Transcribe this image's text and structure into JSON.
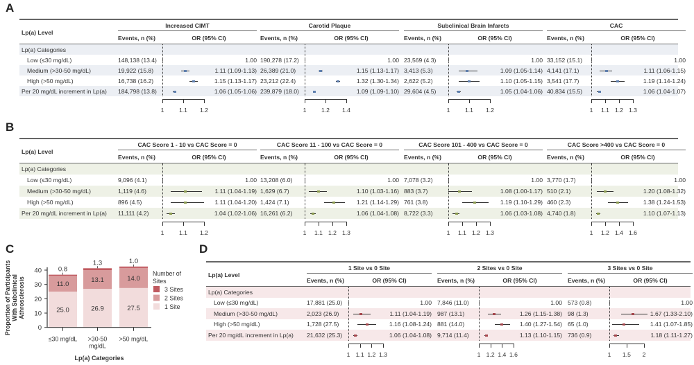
{
  "panels": [
    {
      "letter": "A",
      "row_label_header": "Lp(a) Level",
      "col_events": "Events, n (%)",
      "col_or": "OR (95% CI)",
      "row_labels": [
        "Lp(a) Categories",
        "Low (≤30 mg/dL)",
        "Medium (>30-50 mg/dL)",
        "High (>50 mg/dL)",
        "Per 20 mg/dL increment in Lp(a)"
      ],
      "stripe_color": "#eceff4",
      "marker_color": "#5f7fae",
      "groups": [
        {
          "title": "Increased CIMT",
          "axis": [
            1,
            1.2
          ],
          "ticks": [
            "1",
            "1.1",
            "1.2"
          ],
          "rows": [
            {
              "events": "148,138 (13.4)",
              "or_text": "1.00",
              "or": 1.0,
              "lo": 1.0,
              "hi": 1.0
            },
            {
              "events": "19,922 (15.8)",
              "or_text": "1.11 (1.09-1.13)",
              "or": 1.11,
              "lo": 1.09,
              "hi": 1.13
            },
            {
              "events": "16,738 (16.2)",
              "or_text": "1.15 (1.13-1.17)",
              "or": 1.15,
              "lo": 1.13,
              "hi": 1.17
            },
            {
              "events": "184,798 (13.8)",
              "or_text": "1.06 (1.05-1.06)",
              "or": 1.06,
              "lo": 1.05,
              "hi": 1.06
            }
          ]
        },
        {
          "title": "Carotid Plaque",
          "axis": [
            1,
            1.4
          ],
          "ticks": [
            "1",
            "1.2",
            "1.4"
          ],
          "rows": [
            {
              "events": "190,278 (17.2)",
              "or_text": "1.00",
              "or": 1.0,
              "lo": 1.0,
              "hi": 1.0
            },
            {
              "events": "26,389 (21.0)",
              "or_text": "1.15 (1.13-1.17)",
              "or": 1.15,
              "lo": 1.13,
              "hi": 1.17
            },
            {
              "events": "23,212 (22.4)",
              "or_text": "1.32 (1.30-1.34)",
              "or": 1.32,
              "lo": 1.3,
              "hi": 1.34
            },
            {
              "events": "239,879 (18.0)",
              "or_text": "1.09 (1.09-1.10)",
              "or": 1.09,
              "lo": 1.09,
              "hi": 1.1
            }
          ]
        },
        {
          "title": "Subclinical Brain Infarcts",
          "axis": [
            1,
            1.2
          ],
          "ticks": [
            "1",
            "1.1",
            "1.2"
          ],
          "rows": [
            {
              "events": "23,569 (4.3)",
              "or_text": "1.00",
              "or": 1.0,
              "lo": 1.0,
              "hi": 1.0
            },
            {
              "events": "3,413 (5.3)",
              "or_text": "1.09 (1.05-1.14)",
              "or": 1.09,
              "lo": 1.05,
              "hi": 1.14
            },
            {
              "events": "2,622 (5.2)",
              "or_text": "1.10 (1.05-1.15)",
              "or": 1.1,
              "lo": 1.05,
              "hi": 1.15
            },
            {
              "events": "29,604 (4.5)",
              "or_text": "1.05 (1.04-1.06)",
              "or": 1.05,
              "lo": 1.04,
              "hi": 1.06
            }
          ]
        },
        {
          "title": "CAC",
          "axis": [
            1,
            1.3
          ],
          "ticks": [
            "1",
            "1.1",
            "1.2",
            "1.3"
          ],
          "rows": [
            {
              "events": "33,152 (15.1)",
              "or_text": "1.00",
              "or": 1.0,
              "lo": 1.0,
              "hi": 1.0
            },
            {
              "events": "4,141 (17.1)",
              "or_text": "1.11 (1.06-1.15)",
              "or": 1.11,
              "lo": 1.06,
              "hi": 1.15
            },
            {
              "events": "3,541 (17.7)",
              "or_text": "1.19 (1.14-1.24)",
              "or": 1.19,
              "lo": 1.14,
              "hi": 1.24
            },
            {
              "events": "40,834 (15.5)",
              "or_text": "1.06 (1.04-1.07)",
              "or": 1.06,
              "lo": 1.04,
              "hi": 1.07
            }
          ]
        }
      ]
    },
    {
      "letter": "B",
      "row_label_header": "Lp(a) Level",
      "col_events": "Events, n (%)",
      "col_or": "OR (95% CI)",
      "row_labels": [
        "Lp(a) Categories",
        "Low (≤30 mg/dL)",
        "Medium (>30-50 mg/dL)",
        "High (>50 mg/dL)",
        "Per 20 mg/dL increment in Lp(a)"
      ],
      "stripe_color": "#eef1e6",
      "marker_color": "#8a9a4e",
      "groups": [
        {
          "title": "CAC Score 1 - 10 vs CAC Score = 0",
          "axis": [
            1,
            1.2
          ],
          "ticks": [
            "1",
            "1.1",
            "1.2"
          ],
          "rows": [
            {
              "events": "9,096 (4.1)",
              "or_text": "1.00",
              "or": 1.0,
              "lo": 1.0,
              "hi": 1.0
            },
            {
              "events": "1,119 (4.6)",
              "or_text": "1.11 (1.04-1.19)",
              "or": 1.11,
              "lo": 1.04,
              "hi": 1.19
            },
            {
              "events": "896 (4.5)",
              "or_text": "1.11 (1.04-1.20)",
              "or": 1.11,
              "lo": 1.04,
              "hi": 1.2
            },
            {
              "events": "11,111 (4.2)",
              "or_text": "1.04 (1.02-1.06)",
              "or": 1.04,
              "lo": 1.02,
              "hi": 1.06
            }
          ]
        },
        {
          "title": "CAC Score 11 - 100 vs CAC Score = 0",
          "axis": [
            1,
            1.3
          ],
          "ticks": [
            "1",
            "1.1",
            "1.2",
            "1.3"
          ],
          "rows": [
            {
              "events": "13,208 (6.0)",
              "or_text": "1.00",
              "or": 1.0,
              "lo": 1.0,
              "hi": 1.0
            },
            {
              "events": "1,629 (6.7)",
              "or_text": "1.10 (1.03-1.16)",
              "or": 1.1,
              "lo": 1.03,
              "hi": 1.16
            },
            {
              "events": "1,424 (7.1)",
              "or_text": "1.21 (1.14-1.29)",
              "or": 1.21,
              "lo": 1.14,
              "hi": 1.29
            },
            {
              "events": "16,261 (6.2)",
              "or_text": "1.06 (1.04-1.08)",
              "or": 1.06,
              "lo": 1.04,
              "hi": 1.08
            }
          ]
        },
        {
          "title": "CAC Score 101 - 400 vs CAC Score = 0",
          "axis": [
            1,
            1.3
          ],
          "ticks": [
            "1",
            "1.1",
            "1.2",
            "1.3"
          ],
          "rows": [
            {
              "events": "7,078 (3.2)",
              "or_text": "1.00",
              "or": 1.0,
              "lo": 1.0,
              "hi": 1.0
            },
            {
              "events": "883 (3.7)",
              "or_text": "1.08 (1.00-1.17)",
              "or": 1.08,
              "lo": 1.0,
              "hi": 1.17
            },
            {
              "events": "761 (3.8)",
              "or_text": "1.19 (1.10-1.29)",
              "or": 1.19,
              "lo": 1.1,
              "hi": 1.29
            },
            {
              "events": "8,722 (3.3)",
              "or_text": "1.06 (1.03-1.08)",
              "or": 1.06,
              "lo": 1.03,
              "hi": 1.08
            }
          ]
        },
        {
          "title": "CAC Score >400 vs CAC Score = 0",
          "axis": [
            1,
            1.6
          ],
          "ticks": [
            "1",
            "1.2",
            "1.4",
            "1.6"
          ],
          "rows": [
            {
              "events": "3,770 (1.7)",
              "or_text": "1.00",
              "or": 1.0,
              "lo": 1.0,
              "hi": 1.0
            },
            {
              "events": "510 (2.1)",
              "or_text": "1.20 (1.08-1.32)",
              "or": 1.2,
              "lo": 1.08,
              "hi": 1.32
            },
            {
              "events": "460 (2.3)",
              "or_text": "1.38 (1.24-1.53)",
              "or": 1.38,
              "lo": 1.24,
              "hi": 1.53
            },
            {
              "events": "4,740 (1.8)",
              "or_text": "1.10 (1.07-1.13)",
              "or": 1.1,
              "lo": 1.07,
              "hi": 1.13
            }
          ]
        }
      ]
    },
    {
      "letter": "D",
      "row_label_header": "Lp(a) Level",
      "col_events": "Events, n (%)",
      "col_or": "OR (95% CI)",
      "row_labels": [
        "Lp(a) Categories",
        "Low (≤30 mg/dL)",
        "Medium (>30-50 mg/dL)",
        "High (>50 mg/dL)",
        "Per 20 mg/dL increment in Lp(a)"
      ],
      "stripe_color": "#f7e8e9",
      "marker_color": "#a6464c",
      "groups": [
        {
          "title": "1 Site vs 0 Site",
          "axis": [
            1,
            1.3
          ],
          "ticks": [
            "1",
            "1.1",
            "1.2",
            "1.3"
          ],
          "rows": [
            {
              "events": "17,881 (25.0)",
              "or_text": "1.00",
              "or": 1.0,
              "lo": 1.0,
              "hi": 1.0
            },
            {
              "events": "2,023 (26.9)",
              "or_text": "1.11 (1.04-1.19)",
              "or": 1.11,
              "lo": 1.04,
              "hi": 1.19
            },
            {
              "events": "1,728 (27.5)",
              "or_text": "1.16 (1.08-1.24)",
              "or": 1.16,
              "lo": 1.08,
              "hi": 1.24
            },
            {
              "events": "21,632 (25.3)",
              "or_text": "1.06 (1.04-1.08)",
              "or": 1.06,
              "lo": 1.04,
              "hi": 1.08
            }
          ]
        },
        {
          "title": "2 Sites vs 0 Site",
          "axis": [
            1,
            1.6
          ],
          "ticks": [
            "1",
            "1.2",
            "1.4",
            "1.6"
          ],
          "rows": [
            {
              "events": "7,846 (11.0)",
              "or_text": "1.00",
              "or": 1.0,
              "lo": 1.0,
              "hi": 1.0
            },
            {
              "events": "987 (13.1)",
              "or_text": "1.26 (1.15-1.38)",
              "or": 1.26,
              "lo": 1.15,
              "hi": 1.38
            },
            {
              "events": "881 (14.0)",
              "or_text": "1.40 (1.27-1.54)",
              "or": 1.4,
              "lo": 1.27,
              "hi": 1.54
            },
            {
              "events": "9,714 (11.4)",
              "or_text": "1.13 (1.10-1.15)",
              "or": 1.13,
              "lo": 1.1,
              "hi": 1.15
            }
          ]
        },
        {
          "title": "3 Sites vs 0 Site",
          "axis": [
            1,
            2
          ],
          "ticks": [
            "1",
            "1.5",
            "2"
          ],
          "rows": [
            {
              "events": "573 (0.8)",
              "or_text": "1.00",
              "or": 1.0,
              "lo": 1.0,
              "hi": 1.0
            },
            {
              "events": "98 (1.3)",
              "or_text": "1.67 (1.33-2.10)",
              "or": 1.67,
              "lo": 1.33,
              "hi": 2.1
            },
            {
              "events": "65 (1.0)",
              "or_text": "1.41 (1.07-1.85)",
              "or": 1.41,
              "lo": 1.07,
              "hi": 1.85
            },
            {
              "events": "736 (0.9)",
              "or_text": "1.18 (1.11-1.27)",
              "or": 1.18,
              "lo": 1.11,
              "hi": 1.27
            }
          ]
        }
      ]
    }
  ],
  "chart_data": {
    "letter": "C",
    "type": "bar",
    "stacked": true,
    "categories": [
      "≤30 mg/dL",
      ">30-50 mg/dL",
      ">50 mg/dL"
    ],
    "xlabel": "Lp(a) Categories",
    "ylabel": "Proportion of Participants With Subclinical Athrosclerosis",
    "ylim": [
      0,
      40
    ],
    "yticks": [
      "0",
      "10",
      "20",
      "30",
      "40"
    ],
    "legend_title": "Number of Sites",
    "legend_placement": "right",
    "series": [
      {
        "name": "1 Site",
        "values": [
          25.0,
          26.9,
          27.5
        ],
        "labels": [
          "25.0",
          "26.9",
          "27.5"
        ],
        "color": "#f2dcdc"
      },
      {
        "name": "2 Sites",
        "values": [
          11.0,
          13.1,
          14.0
        ],
        "labels": [
          "11.0",
          "13.1",
          "14.0"
        ],
        "color": "#d89b9c"
      },
      {
        "name": "3 Sites",
        "values": [
          0.8,
          1.3,
          1.0
        ],
        "labels": [
          "0.8",
          "1.3",
          "1.0"
        ],
        "color": "#c05a60"
      }
    ]
  }
}
